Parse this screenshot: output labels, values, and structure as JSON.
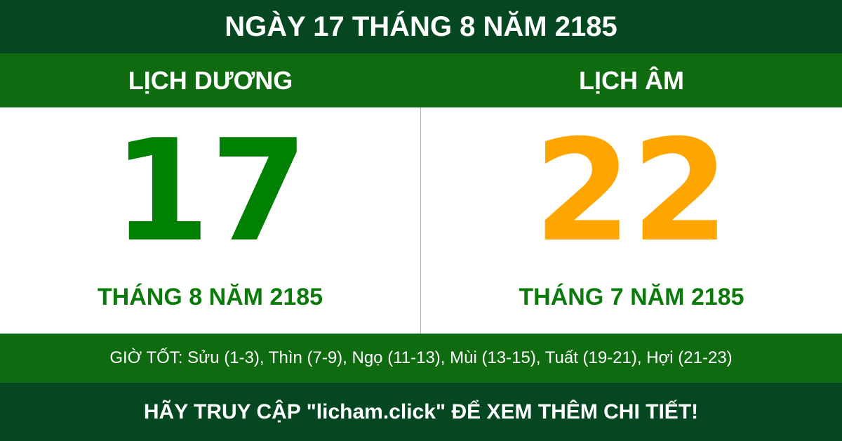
{
  "title": "NGÀY 17 THÁNG 8 NĂM 2185",
  "solar": {
    "heading": "LỊCH DƯƠNG",
    "day": "17",
    "month_year": "THÁNG 8 NĂM 2185"
  },
  "lunar": {
    "heading": "LỊCH ÂM",
    "day": "22",
    "month_year": "THÁNG 7 NĂM 2185"
  },
  "good_hours": "GIỜ TỐT: Sửu (1-3), Thìn (7-9), Ngọ (11-13), Mùi (13-15), Tuất (19-21), Hợi (21-23)",
  "footer": "HÃY TRUY CẬP \"licham.click\" ĐỂ XEM THÊM CHI TIẾT!",
  "colors": {
    "dark_green": "#044721",
    "band_green": "#0f6b10",
    "solar_day": "#008000",
    "lunar_day": "#ffa500"
  }
}
